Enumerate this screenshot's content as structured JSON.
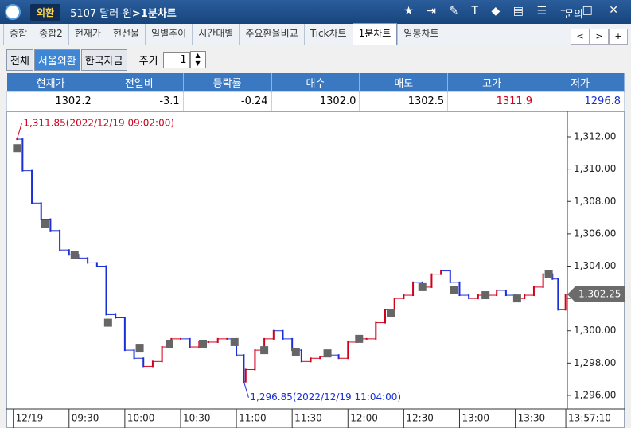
{
  "window": {
    "badge": "외환",
    "title": "5107 달러-원",
    "title_bold": ">1분차트",
    "menu": "문의"
  },
  "tabs": [
    "종합",
    "종합2",
    "현재가",
    "현선물",
    "일별추이",
    "시간대별",
    "주요환율비교",
    "Tick차트",
    "1분차트",
    "일봉차트"
  ],
  "active_tab": 8,
  "filters": [
    "전체",
    "서울외환",
    "한국자금"
  ],
  "active_filter": 1,
  "period_label": "주기",
  "period_value": 1,
  "quote": {
    "headers": [
      "현재가",
      "전일비",
      "등락률",
      "매수",
      "매도",
      "고가",
      "저가"
    ],
    "values": [
      "1302.2",
      "-3.1",
      "-0.24",
      "1302.0",
      "1302.5",
      "1311.9",
      "1296.8"
    ],
    "colors": [
      "#000000",
      "#000000",
      "#000000",
      "#000000",
      "#000000",
      "#d0021b",
      "#1a2fd6"
    ]
  },
  "chart_data": {
    "type": "line",
    "x": [
      "09:02",
      "09:05",
      "09:10",
      "09:15",
      "09:20",
      "09:25",
      "09:30",
      "09:35",
      "09:40",
      "09:45",
      "09:50",
      "09:55",
      "10:00",
      "10:05",
      "10:10",
      "10:15",
      "10:20",
      "10:25",
      "10:30",
      "10:35",
      "10:40",
      "10:45",
      "10:50",
      "10:55",
      "11:00",
      "11:04",
      "11:05",
      "11:10",
      "11:15",
      "11:20",
      "11:25",
      "11:30",
      "11:35",
      "11:40",
      "11:45",
      "11:50",
      "11:55",
      "12:00",
      "12:05",
      "12:10",
      "12:15",
      "12:20",
      "12:25",
      "12:30",
      "12:35",
      "12:40",
      "12:45",
      "12:50",
      "12:55",
      "13:00",
      "13:05",
      "13:10",
      "13:15",
      "13:20",
      "13:25",
      "13:30",
      "13:35",
      "13:40",
      "13:45",
      "13:50",
      "13:53",
      "13:57"
    ],
    "values": [
      1311.85,
      1309.9,
      1307.9,
      1306.9,
      1306.2,
      1305.0,
      1304.7,
      1304.5,
      1304.2,
      1304.0,
      1301.0,
      1300.8,
      1298.8,
      1298.3,
      1297.8,
      1298.1,
      1299.0,
      1299.5,
      1299.5,
      1299.0,
      1299.3,
      1299.3,
      1299.5,
      1299.5,
      1298.5,
      1296.85,
      1297.6,
      1298.8,
      1299.5,
      1300.0,
      1299.5,
      1298.8,
      1298.1,
      1298.3,
      1298.4,
      1298.5,
      1298.3,
      1299.3,
      1299.5,
      1299.5,
      1300.5,
      1301.3,
      1302.0,
      1302.2,
      1303.0,
      1302.7,
      1303.5,
      1303.7,
      1303.0,
      1302.2,
      1302.0,
      1302.2,
      1302.2,
      1302.5,
      1302.2,
      1302.0,
      1302.2,
      1302.7,
      1303.5,
      1303.2,
      1301.3,
      1302.25
    ],
    "up_color": "#d0021b",
    "down_color": "#1a2fd6",
    "markers": {
      "color": "#666666",
      "x": [
        "09:02",
        "09:17",
        "09:33",
        "09:51",
        "10:08",
        "10:24",
        "10:42",
        "10:59",
        "11:15",
        "11:32",
        "11:49",
        "12:06",
        "12:23",
        "12:40",
        "12:57",
        "13:14",
        "13:31",
        "13:48"
      ],
      "values": [
        1311.3,
        1306.6,
        1304.7,
        1300.5,
        1298.9,
        1299.2,
        1299.2,
        1299.3,
        1298.8,
        1298.7,
        1298.6,
        1299.5,
        1301.1,
        1302.7,
        1302.5,
        1302.2,
        1302.0,
        1303.5
      ]
    },
    "xlim": [
      "08:58",
      "13:58"
    ],
    "xticks": [
      {
        "value": "09:00",
        "label": "12/19"
      },
      "09:30",
      "10:00",
      "10:30",
      "11:00",
      "11:30",
      "12:00",
      "12:30",
      "13:00",
      "13:30",
      {
        "value": "13:57:10",
        "label": "13:57:10"
      }
    ],
    "ylim": [
      1295.26,
      1313.33
    ],
    "yticks": [
      {
        "value": 1296,
        "label": "1,296.00"
      },
      {
        "value": 1298,
        "label": "1,298.00"
      },
      {
        "value": 1300,
        "label": "1,300.00"
      },
      {
        "value": 1302,
        "label": "1,302.00"
      },
      {
        "value": 1304,
        "label": "1,304.00"
      },
      {
        "value": 1306,
        "label": "1,306.00"
      },
      {
        "value": 1308,
        "label": "1,308.00"
      },
      {
        "value": 1310,
        "label": "1,310.00"
      },
      {
        "value": 1312,
        "label": "1,312.00"
      }
    ],
    "last_price": {
      "value": 1302.25,
      "label": "1,302.25"
    },
    "annotations": [
      {
        "text": "1,311.85(2022/12/19 09:02:00)",
        "x": "09:02",
        "value": 1311.85,
        "color": "#d0021b"
      },
      {
        "text": "1,296.85(2022/12/19 11:04:00)",
        "x": "11:04",
        "value": 1296.85,
        "color": "#1a2fd6"
      }
    ]
  }
}
